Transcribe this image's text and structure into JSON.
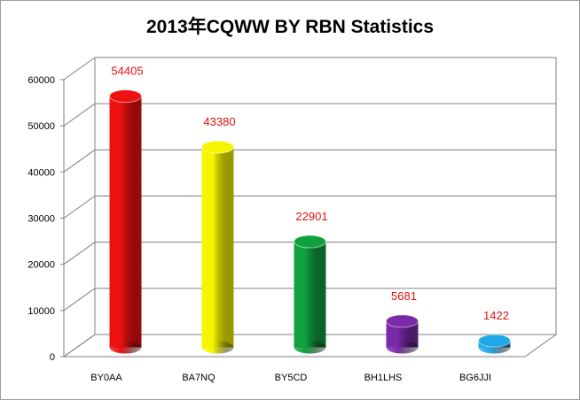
{
  "chart_data": {
    "type": "bar",
    "title": "2013年CQWW BY RBN  Statistics",
    "xlabel": "",
    "ylabel": "",
    "ylim": [
      0,
      60000
    ],
    "y_ticks": [
      "0",
      "10000",
      "20000",
      "30000",
      "40000",
      "50000",
      "60000"
    ],
    "grid": true,
    "categories": [
      "BY0AA",
      "BA7NQ",
      "BY5CD",
      "BH1LHS",
      "BG6JJI"
    ],
    "values": [
      54405,
      43380,
      22901,
      5681,
      1422
    ],
    "value_labels": [
      "54405",
      "43380",
      "22901",
      "5681",
      "1422"
    ],
    "colors": [
      "#ee1111",
      "#f5f500",
      "#10a040",
      "#7a2aa8",
      "#20a8e8"
    ]
  }
}
